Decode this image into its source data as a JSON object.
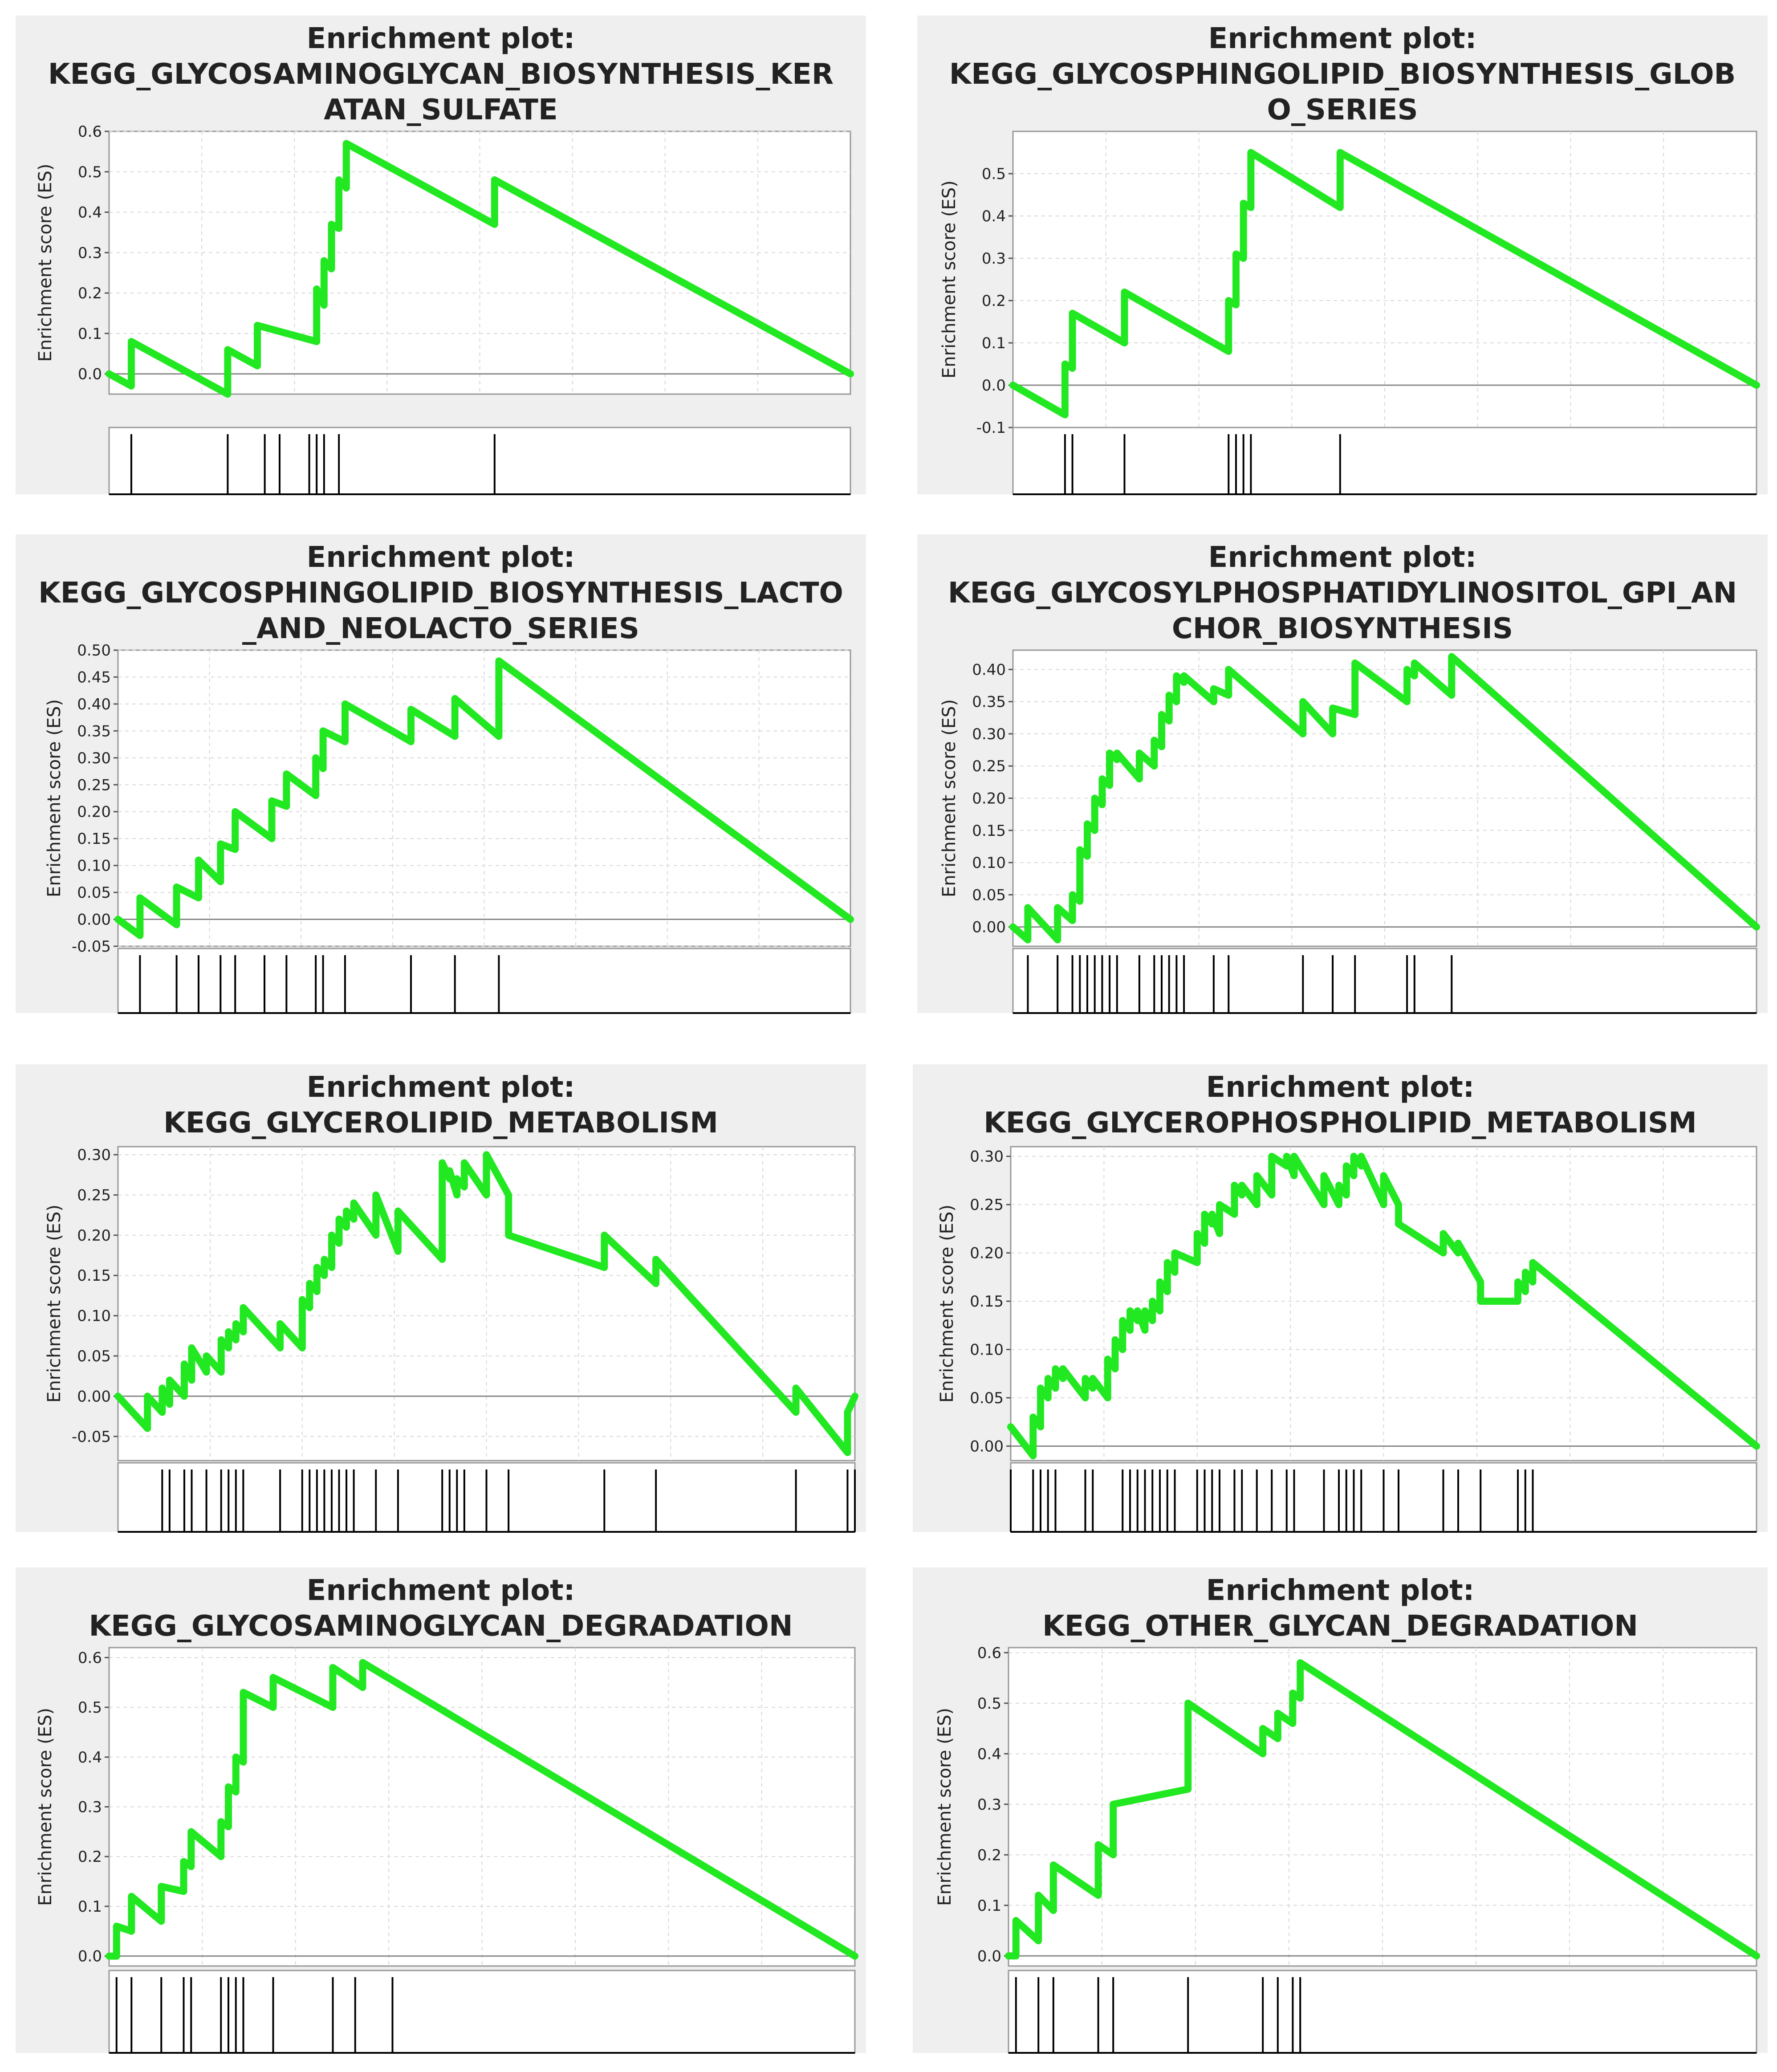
{
  "chart_data": [
    {
      "type": "line",
      "title": "Enrichment plot:\nKEGG_GLYCOSAMINOGLYCAN_BIOSYNTHESIS_KER\nATAN_SULFATE",
      "ylabel": "Enrichment score (ES)",
      "ylim": [
        -0.05,
        0.6
      ],
      "yticks": [
        "0.6",
        "0.5",
        "0.4",
        "0.3",
        "0.2",
        "0.1",
        "0.0"
      ],
      "ytick_values": [
        0.6,
        0.5,
        0.4,
        0.3,
        0.2,
        0.1,
        0.0
      ],
      "grid": true,
      "line_color": "#22e822",
      "x": [
        0,
        3,
        3,
        16,
        16,
        20,
        20,
        28,
        28,
        29,
        29,
        30,
        30,
        31,
        31,
        32,
        32,
        52,
        52,
        100
      ],
      "y": [
        0,
        -0.03,
        0.08,
        -0.05,
        0.06,
        0.02,
        0.12,
        0.08,
        0.21,
        0.17,
        0.28,
        0.26,
        0.37,
        0.36,
        0.48,
        0.46,
        0.57,
        0.37,
        0.48,
        0
      ],
      "hits": [
        3,
        16,
        21,
        23,
        27,
        28,
        29,
        31,
        52
      ]
    },
    {
      "type": "line",
      "title": "Enrichment plot:\nKEGG_GLYCOSPHINGOLIPID_BIOSYNTHESIS_GLOB\nO_SERIES",
      "ylabel": "Enrichment score (ES)",
      "ylim": [
        -0.1,
        0.6
      ],
      "yticks": [
        "0.5",
        "0.4",
        "0.3",
        "0.2",
        "0.1",
        "0.0",
        "-0.1"
      ],
      "ytick_values": [
        0.5,
        0.4,
        0.3,
        0.2,
        0.1,
        0.0,
        -0.1
      ],
      "grid": true,
      "line_color": "#22e822",
      "x": [
        0,
        7,
        7,
        8,
        8,
        15,
        15,
        29,
        29,
        30,
        30,
        31,
        31,
        32,
        32,
        44,
        44,
        100
      ],
      "y": [
        0,
        -0.07,
        0.05,
        0.04,
        0.17,
        0.1,
        0.22,
        0.08,
        0.2,
        0.19,
        0.31,
        0.3,
        0.43,
        0.42,
        0.55,
        0.42,
        0.55,
        0
      ],
      "hits": [
        7,
        8,
        15,
        29,
        30,
        31,
        32,
        44
      ]
    },
    {
      "type": "line",
      "title": "Enrichment plot:\nKEGG_GLYCOSPHINGOLIPID_BIOSYNTHESIS_LACTO\n_AND_NEOLACTO_SERIES",
      "ylabel": "Enrichment score (ES)",
      "ylim": [
        -0.05,
        0.5
      ],
      "yticks": [
        "0.50",
        "0.45",
        "0.40",
        "0.35",
        "0.30",
        "0.25",
        "0.20",
        "0.15",
        "0.10",
        "0.05",
        "0.00",
        "-0.05"
      ],
      "ytick_values": [
        0.5,
        0.45,
        0.4,
        0.35,
        0.3,
        0.25,
        0.2,
        0.15,
        0.1,
        0.05,
        0.0,
        -0.05
      ],
      "grid": true,
      "line_color": "#22e822",
      "x": [
        0,
        3,
        3,
        8,
        8,
        11,
        11,
        14,
        14,
        16,
        16,
        21,
        21,
        23,
        23,
        27,
        27,
        28,
        28,
        31,
        31,
        40,
        40,
        46,
        46,
        52,
        52,
        100
      ],
      "y": [
        0,
        -0.03,
        0.04,
        -0.01,
        0.06,
        0.04,
        0.11,
        0.07,
        0.14,
        0.13,
        0.2,
        0.15,
        0.22,
        0.21,
        0.27,
        0.23,
        0.3,
        0.28,
        0.35,
        0.33,
        0.4,
        0.33,
        0.39,
        0.34,
        0.41,
        0.34,
        0.48,
        0
      ],
      "hits": [
        3,
        8,
        11,
        14,
        16,
        20,
        23,
        27,
        28,
        31,
        40,
        46,
        52
      ]
    },
    {
      "type": "line",
      "title": "Enrichment plot:\nKEGG_GLYCOSYLPHOSPHATIDYLINOSITOL_GPI_AN\nCHOR_BIOSYNTHESIS",
      "ylabel": "Enrichment score (ES)",
      "ylim": [
        -0.03,
        0.43
      ],
      "yticks": [
        "0.40",
        "0.35",
        "0.30",
        "0.25",
        "0.20",
        "0.15",
        "0.10",
        "0.05",
        "0.00"
      ],
      "ytick_values": [
        0.4,
        0.35,
        0.3,
        0.25,
        0.2,
        0.15,
        0.1,
        0.05,
        0.0
      ],
      "grid": true,
      "line_color": "#22e822",
      "x": [
        0,
        2,
        2,
        6,
        6,
        8,
        8,
        9,
        9,
        10,
        10,
        11,
        11,
        12,
        12,
        13,
        13,
        14,
        14,
        17,
        17,
        19,
        19,
        20,
        20,
        21,
        21,
        22,
        22,
        23,
        23,
        27,
        27,
        29,
        29,
        39,
        39,
        43,
        43,
        46,
        46,
        53,
        53,
        54,
        54,
        59,
        59,
        100
      ],
      "y": [
        0,
        -0.02,
        0.03,
        -0.02,
        0.03,
        0.01,
        0.05,
        0.04,
        0.12,
        0.11,
        0.16,
        0.15,
        0.2,
        0.19,
        0.23,
        0.22,
        0.27,
        0.26,
        0.27,
        0.23,
        0.27,
        0.25,
        0.29,
        0.28,
        0.33,
        0.32,
        0.36,
        0.35,
        0.39,
        0.38,
        0.39,
        0.35,
        0.37,
        0.36,
        0.4,
        0.3,
        0.35,
        0.3,
        0.34,
        0.33,
        0.41,
        0.35,
        0.4,
        0.39,
        0.41,
        0.36,
        0.42,
        0
      ],
      "hits": [
        2,
        6,
        8,
        9,
        10,
        11,
        12,
        13,
        14,
        17,
        19,
        20,
        21,
        22,
        23,
        27,
        29,
        39,
        43,
        46,
        53,
        54,
        59
      ]
    },
    {
      "type": "line",
      "title": "Enrichment plot:\nKEGG_GLYCEROLIPID_METABOLISM",
      "ylabel": "Enrichment score (ES)",
      "ylim": [
        -0.08,
        0.31
      ],
      "yticks": [
        "0.30",
        "0.25",
        "0.20",
        "0.15",
        "0.10",
        "0.05",
        "0.00",
        "-0.05"
      ],
      "ytick_values": [
        0.3,
        0.25,
        0.2,
        0.15,
        0.1,
        0.05,
        0.0,
        -0.05
      ],
      "grid": true,
      "line_color": "#22e822",
      "x": [
        0,
        4,
        4,
        6,
        6,
        7,
        7,
        9,
        9,
        10,
        10,
        12,
        12,
        14,
        14,
        15,
        15,
        16,
        16,
        17,
        17,
        22,
        22,
        25,
        25,
        26,
        26,
        27,
        27,
        28,
        28,
        29,
        29,
        30,
        30,
        31,
        31,
        32,
        32,
        35,
        35,
        38,
        38,
        44,
        44,
        45,
        45,
        46,
        46,
        47,
        47,
        50,
        50,
        53,
        53,
        66,
        66,
        73,
        73,
        92,
        92,
        99,
        99,
        100
      ],
      "y": [
        0,
        -0.04,
        0.0,
        -0.02,
        0.01,
        -0.01,
        0.02,
        0.0,
        0.04,
        0.02,
        0.06,
        0.03,
        0.05,
        0.03,
        0.07,
        0.06,
        0.08,
        0.07,
        0.09,
        0.08,
        0.11,
        0.06,
        0.09,
        0.06,
        0.12,
        0.11,
        0.14,
        0.13,
        0.16,
        0.15,
        0.17,
        0.16,
        0.2,
        0.19,
        0.22,
        0.21,
        0.23,
        0.22,
        0.24,
        0.2,
        0.25,
        0.18,
        0.23,
        0.17,
        0.29,
        0.27,
        0.28,
        0.25,
        0.27,
        0.26,
        0.29,
        0.25,
        0.3,
        0.25,
        0.2,
        0.16,
        0.2,
        0.14,
        0.17,
        -0.02,
        0.01,
        -0.07,
        -0.02,
        0.0
      ],
      "hits": [
        6,
        7,
        9,
        10,
        12,
        14,
        15,
        16,
        17,
        22,
        25,
        26,
        27,
        28,
        29,
        30,
        31,
        32,
        35,
        38,
        44,
        45,
        46,
        47,
        50,
        53,
        66,
        73,
        92,
        99,
        100
      ]
    },
    {
      "type": "line",
      "title": "Enrichment plot:\nKEGG_GLYCEROPHOSPHOLIPID_METABOLISM",
      "ylabel": "Enrichment score (ES)",
      "ylim": [
        -0.015,
        0.31
      ],
      "yticks": [
        "0.30",
        "0.25",
        "0.20",
        "0.15",
        "0.10",
        "0.05",
        "0.00"
      ],
      "ytick_values": [
        0.3,
        0.25,
        0.2,
        0.15,
        0.1,
        0.05,
        0.0
      ],
      "grid": true,
      "line_color": "#22e822",
      "x": [
        0,
        3,
        3,
        4,
        4,
        5,
        5,
        6,
        6,
        7,
        7,
        10,
        10,
        11,
        11,
        13,
        13,
        14,
        14,
        15,
        15,
        16,
        16,
        17,
        17,
        18,
        18,
        19,
        19,
        20,
        20,
        21,
        21,
        22,
        22,
        25,
        25,
        26,
        26,
        27,
        27,
        28,
        28,
        30,
        30,
        31,
        31,
        33,
        33,
        35,
        35,
        37,
        37,
        38,
        38,
        42,
        42,
        44,
        44,
        45,
        45,
        46,
        46,
        47,
        47,
        50,
        50,
        52,
        52,
        58,
        58,
        60,
        60,
        63,
        63,
        68,
        68,
        69,
        69,
        70,
        70,
        100
      ],
      "y": [
        0.02,
        -0.01,
        0.03,
        0.02,
        0.06,
        0.05,
        0.07,
        0.06,
        0.08,
        0.07,
        0.08,
        0.05,
        0.07,
        0.06,
        0.07,
        0.05,
        0.09,
        0.08,
        0.11,
        0.1,
        0.13,
        0.12,
        0.14,
        0.13,
        0.14,
        0.12,
        0.14,
        0.13,
        0.15,
        0.14,
        0.17,
        0.16,
        0.19,
        0.18,
        0.2,
        0.19,
        0.22,
        0.21,
        0.24,
        0.23,
        0.24,
        0.22,
        0.25,
        0.24,
        0.27,
        0.26,
        0.27,
        0.25,
        0.28,
        0.26,
        0.3,
        0.29,
        0.3,
        0.28,
        0.3,
        0.25,
        0.28,
        0.25,
        0.27,
        0.26,
        0.29,
        0.28,
        0.3,
        0.29,
        0.3,
        0.25,
        0.28,
        0.25,
        0.23,
        0.2,
        0.22,
        0.2,
        0.21,
        0.17,
        0.15,
        0.15,
        0.17,
        0.16,
        0.18,
        0.17,
        0.19,
        0.0
      ],
      "hits": [
        0,
        3,
        4,
        5,
        6,
        10,
        11,
        15,
        16,
        17,
        18,
        19,
        20,
        21,
        22,
        25,
        26,
        27,
        28,
        30,
        31,
        33,
        35,
        37,
        38,
        42,
        44,
        45,
        46,
        47,
        50,
        52,
        58,
        60,
        63,
        68,
        69,
        70
      ]
    },
    {
      "type": "line",
      "title": "Enrichment plot:\nKEGG_GLYCOSAMINOGLYCAN_DEGRADATION",
      "ylabel": "Enrichment score (ES)",
      "ylim": [
        -0.02,
        0.62
      ],
      "yticks": [
        "0.6",
        "0.5",
        "0.4",
        "0.3",
        "0.2",
        "0.1",
        "0.0"
      ],
      "ytick_values": [
        0.6,
        0.5,
        0.4,
        0.3,
        0.2,
        0.1,
        0.0
      ],
      "grid": true,
      "line_color": "#22e822",
      "x": [
        0,
        1,
        1,
        3,
        3,
        7,
        7,
        10,
        10,
        11,
        11,
        15,
        15,
        16,
        16,
        17,
        17,
        18,
        18,
        22,
        22,
        30,
        30,
        34,
        34,
        100
      ],
      "y": [
        0,
        0,
        0.06,
        0.05,
        0.12,
        0.07,
        0.14,
        0.13,
        0.19,
        0.18,
        0.25,
        0.2,
        0.27,
        0.26,
        0.34,
        0.33,
        0.4,
        0.39,
        0.53,
        0.5,
        0.56,
        0.5,
        0.58,
        0.54,
        0.59,
        0
      ],
      "hits": [
        1,
        3,
        7,
        10,
        11,
        15,
        16,
        17,
        18,
        22,
        30,
        33,
        38
      ]
    },
    {
      "type": "line",
      "title": "Enrichment plot:\nKEGG_OTHER_GLYCAN_DEGRADATION",
      "ylabel": "Enrichment score (ES)",
      "ylim": [
        -0.02,
        0.61
      ],
      "yticks": [
        "0.6",
        "0.5",
        "0.4",
        "0.3",
        "0.2",
        "0.1",
        "0.0"
      ],
      "ytick_values": [
        0.6,
        0.5,
        0.4,
        0.3,
        0.2,
        0.1,
        0.0
      ],
      "grid": true,
      "line_color": "#22e822",
      "x": [
        0,
        1,
        1,
        4,
        4,
        6,
        6,
        12,
        12,
        14,
        14,
        24,
        24,
        34,
        34,
        36,
        36,
        38,
        38,
        39,
        39,
        100
      ],
      "y": [
        0,
        0,
        0.07,
        0.03,
        0.12,
        0.09,
        0.18,
        0.12,
        0.22,
        0.2,
        0.3,
        0.33,
        0.5,
        0.4,
        0.45,
        0.43,
        0.48,
        0.46,
        0.52,
        0.51,
        0.58,
        0
      ],
      "hits": [
        1,
        4,
        6,
        12,
        14,
        24,
        34,
        36,
        38,
        39
      ]
    }
  ]
}
